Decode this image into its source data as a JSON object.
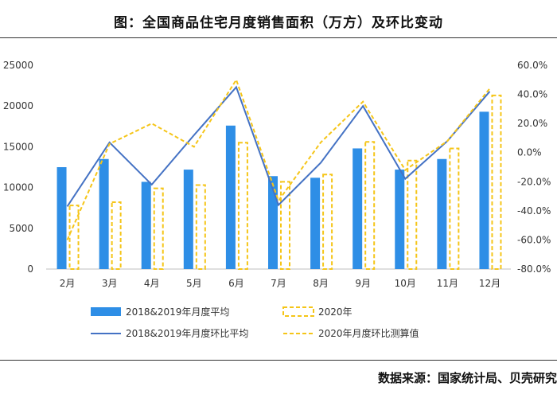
{
  "header": {
    "title": "图：全国商品住宅月度销售面积（万方）及环比变动"
  },
  "footer": {
    "source": "数据来源：国家统计局、贝壳研究"
  },
  "colors": {
    "bar_main": "#2e8ee6",
    "bar_2020": "#f5c518",
    "line_main": "#4472c4",
    "line_2020": "#f5c518"
  },
  "chart_data": {
    "type": "bar",
    "categories": [
      "2月",
      "3月",
      "4月",
      "5月",
      "6月",
      "7月",
      "8月",
      "9月",
      "10月",
      "11月",
      "12月"
    ],
    "y_left": {
      "min": 0,
      "max": 25000,
      "ticks": [
        "0",
        "5000",
        "10000",
        "15000",
        "20000",
        "25000"
      ]
    },
    "y_right": {
      "min": -80,
      "max": 60,
      "ticks": [
        "-80.0%",
        "-60.0%",
        "-40.0%",
        "-20.0%",
        "0.0%",
        "20.0%",
        "40.0%",
        "60.0%"
      ]
    },
    "grid": false,
    "legend_position": "bottom",
    "series": [
      {
        "name": "2018&2019年月度平均",
        "type": "bar",
        "axis": "left",
        "values": [
          12500,
          13500,
          10700,
          12200,
          17600,
          11400,
          11200,
          14800,
          12200,
          13500,
          19300
        ]
      },
      {
        "name": "2020年",
        "type": "bar-dashed",
        "axis": "left",
        "values": [
          7800,
          8200,
          9900,
          10300,
          15500,
          10700,
          11600,
          15600,
          13300,
          14800,
          21300
        ]
      },
      {
        "name": "2018&2019年月度环比平均",
        "type": "line",
        "axis": "right",
        "values": [
          -37,
          7,
          -22,
          12,
          45,
          -36,
          -7,
          32,
          -18,
          8,
          42
        ]
      },
      {
        "name": "2020年月度环比测算值",
        "type": "line-dashed",
        "axis": "right",
        "values": [
          -60,
          6,
          20,
          4,
          50,
          -33,
          7,
          35,
          -12,
          8,
          44
        ]
      }
    ]
  }
}
